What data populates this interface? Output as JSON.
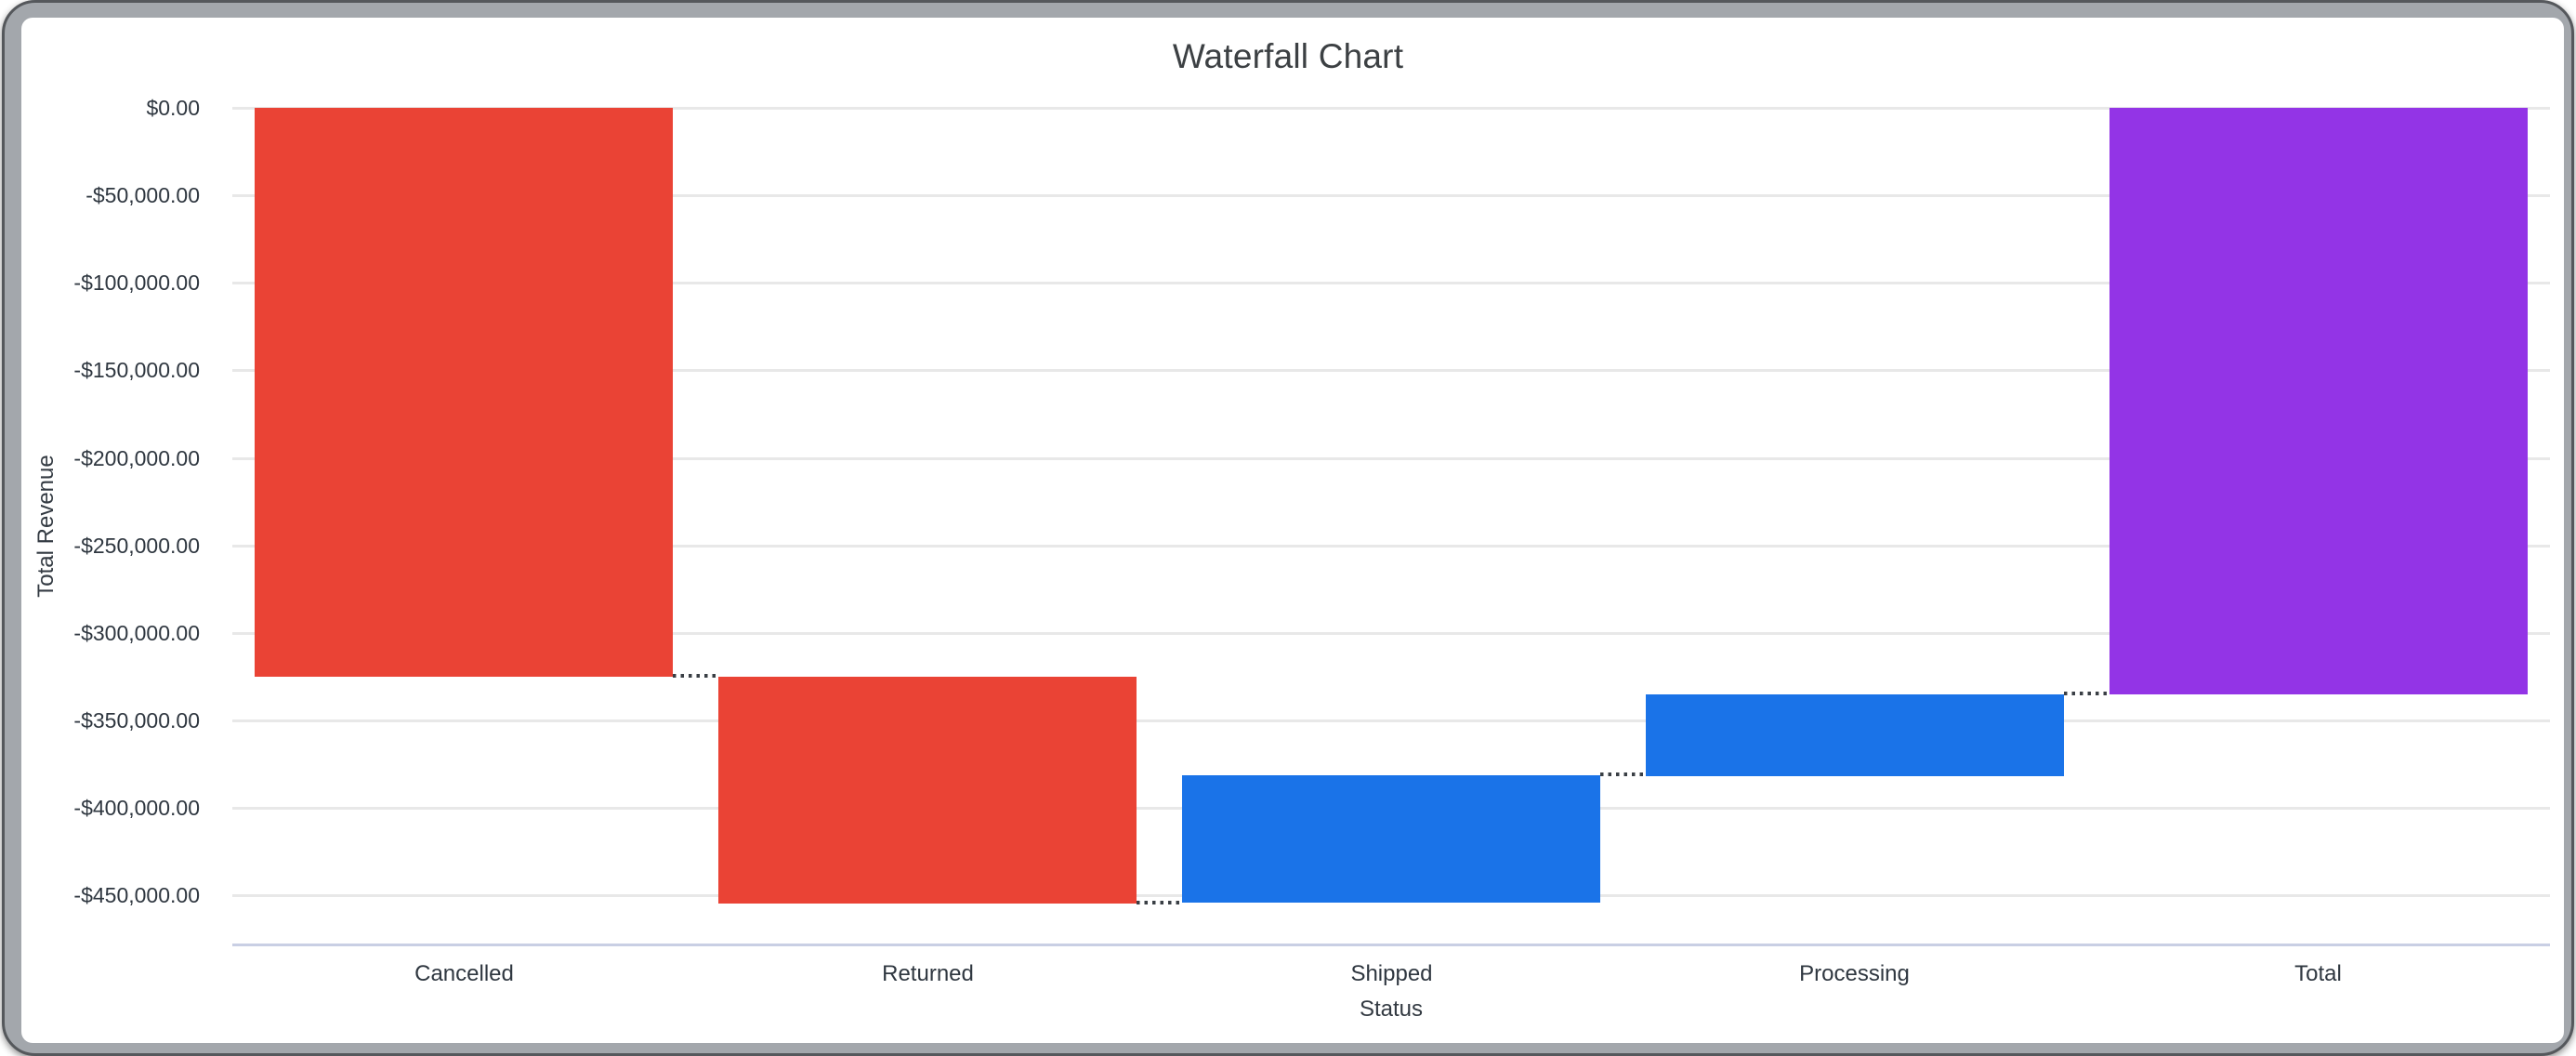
{
  "frame": {
    "background": "#A3A7AC",
    "card_background": "#FFFFFF"
  },
  "chart_data": {
    "type": "waterfall",
    "title": "Waterfall Chart",
    "xlabel": "Status",
    "ylabel": "Total Revenue",
    "categories": [
      "Cancelled",
      "Returned",
      "Shipped",
      "Processing",
      "Total"
    ],
    "series": [
      {
        "name": "Cancelled",
        "delta": -325000,
        "start": 0,
        "end": -325000,
        "role": "decrease"
      },
      {
        "name": "Returned",
        "delta": -129500,
        "start": -325000,
        "end": -454500,
        "role": "decrease"
      },
      {
        "name": "Shipped",
        "delta": 73000,
        "start": -454500,
        "end": -381500,
        "role": "increase"
      },
      {
        "name": "Processing",
        "delta": 46500,
        "start": -381500,
        "end": -335000,
        "role": "increase"
      },
      {
        "name": "Total",
        "delta": -335000,
        "start": 0,
        "end": -335000,
        "role": "total"
      }
    ],
    "colors": {
      "decrease": "#EA4335",
      "increase": "#1A73E8",
      "total": "#9334E6"
    },
    "y_ticks": [
      {
        "value": 0,
        "label": "$0.00"
      },
      {
        "value": -50000,
        "label": "-$50,000.00"
      },
      {
        "value": -100000,
        "label": "-$100,000.00"
      },
      {
        "value": -150000,
        "label": "-$150,000.00"
      },
      {
        "value": -200000,
        "label": "-$200,000.00"
      },
      {
        "value": -250000,
        "label": "-$250,000.00"
      },
      {
        "value": -300000,
        "label": "-$300,000.00"
      },
      {
        "value": -350000,
        "label": "-$350,000.00"
      },
      {
        "value": -400000,
        "label": "-$400,000.00"
      },
      {
        "value": -450000,
        "label": "-$450,000.00"
      }
    ],
    "ylim": [
      -478000,
      0
    ],
    "grid": true,
    "legend": "none",
    "connector_style": "dotted"
  }
}
